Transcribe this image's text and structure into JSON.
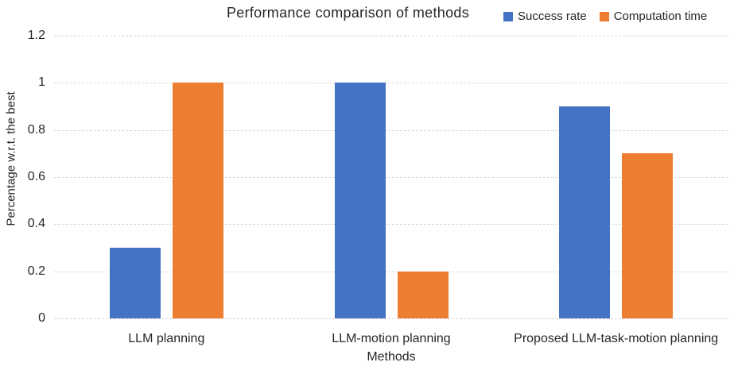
{
  "chart_data": {
    "type": "bar",
    "title": "Performance comparison of methods",
    "categories": [
      "LLM planning",
      "LLM-motion planning",
      "Proposed LLM-task-motion planning"
    ],
    "series": [
      {
        "name": "Success rate",
        "color": "#4472C4",
        "values": [
          0.3,
          1.0,
          0.9
        ]
      },
      {
        "name": "Computation time",
        "color": "#ED7D31",
        "values": [
          1.0,
          0.2,
          0.7
        ]
      }
    ],
    "xlabel": "Methods",
    "ylabel": "Percentage w.r.t. the best",
    "ylim": [
      0,
      1.2
    ],
    "yticks": [
      {
        "value": 0,
        "label": "0"
      },
      {
        "value": 0.2,
        "label": "0.2"
      },
      {
        "value": 0.4,
        "label": "0.4"
      },
      {
        "value": 0.6,
        "label": "0.6"
      },
      {
        "value": 0.8,
        "label": "0.8"
      },
      {
        "value": 1.0,
        "label": "1"
      },
      {
        "value": 1.2,
        "label": "1.2"
      }
    ],
    "grid": true,
    "gridline_color": "#D9D9D9",
    "legend_position": "top-right"
  }
}
